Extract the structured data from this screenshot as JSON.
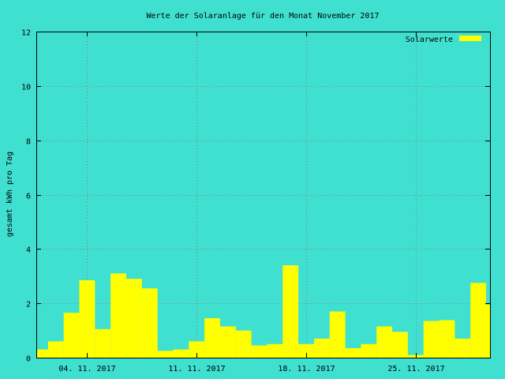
{
  "chart_data": {
    "type": "bar",
    "title": "Werte der Solaranlage für den Monat November 2017",
    "xlabel": "",
    "ylabel": "gesamt kWh pro Tag",
    "ylim": [
      0,
      12
    ],
    "yticks": [
      "0",
      "2",
      "4",
      "6",
      "8",
      "10",
      "12"
    ],
    "xticks": [
      {
        "day": 4,
        "label": "04. 11. 2017"
      },
      {
        "day": 11,
        "label": "11. 11. 2017"
      },
      {
        "day": 18,
        "label": "18. 11. 2017"
      },
      {
        "day": 25,
        "label": "25. 11. 2017"
      }
    ],
    "xlim": [
      0.75,
      29.75
    ],
    "grid": true,
    "legend_position": "top-right",
    "colors": {
      "background": "#40e0d0",
      "bar": "#ffff00"
    },
    "categories": [
      1,
      2,
      3,
      4,
      5,
      6,
      7,
      8,
      9,
      10,
      11,
      12,
      13,
      14,
      15,
      16,
      17,
      18,
      19,
      20,
      21,
      22,
      23,
      24,
      25,
      26,
      27,
      28,
      29,
      30
    ],
    "series": [
      {
        "name": "Solarwerte",
        "values": [
          0.3,
          0.6,
          1.65,
          2.85,
          1.05,
          3.1,
          2.9,
          2.55,
          0.25,
          0.3,
          0.6,
          1.45,
          1.15,
          1.0,
          0.45,
          0.5,
          3.4,
          0.5,
          0.7,
          1.7,
          0.35,
          0.5,
          1.15,
          0.95,
          0.1,
          1.35,
          1.38,
          0.7,
          2.75,
          1.95
        ]
      }
    ]
  }
}
